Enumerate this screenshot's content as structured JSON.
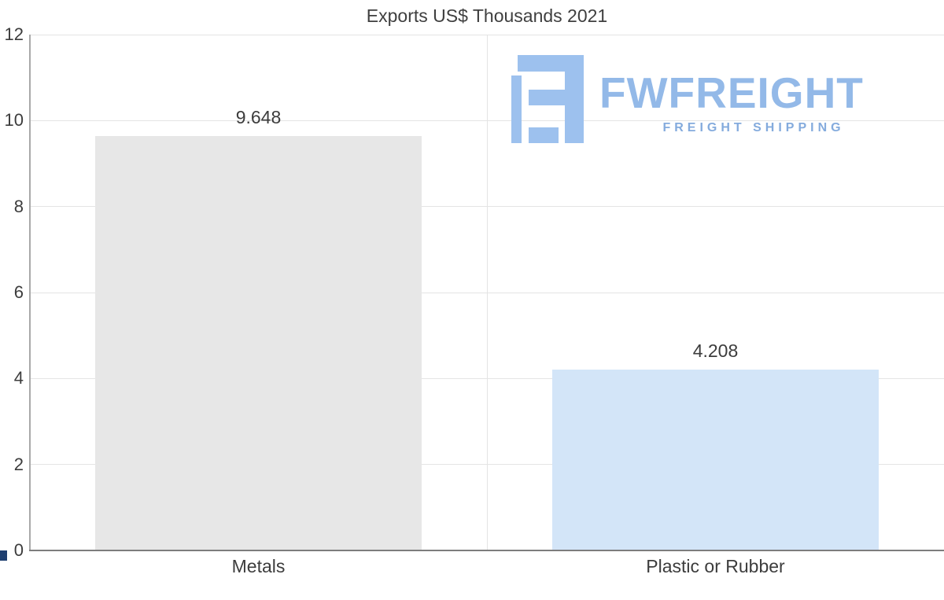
{
  "logo": {
    "name": "FWFREIGHT",
    "tagline": "FREIGHT SHIPPING",
    "brand_color": "#93b9e8",
    "icon": "blocky-f-logo-icon"
  },
  "colors": {
    "metals_bar": "#e7e7e7",
    "plastic_bar": "#d3e5f8",
    "gridline": "#e4e4e4",
    "axis": "#7d7d7d",
    "text": "#3c3c3c"
  },
  "chart_data": {
    "type": "bar",
    "title": "Exports US$ Thousands 2021",
    "categories": [
      "Metals",
      "Plastic or Rubber"
    ],
    "values": [
      9.648,
      4.208
    ],
    "value_labels": [
      "9.648",
      "4.208"
    ],
    "bar_colors": [
      "#e7e7e7",
      "#d3e5f8"
    ],
    "xlabel": "",
    "ylabel": "",
    "ylim": [
      0,
      12
    ],
    "yticks": [
      0,
      2,
      4,
      6,
      8,
      10,
      12
    ],
    "grid": "horizontal",
    "legend": "none"
  }
}
